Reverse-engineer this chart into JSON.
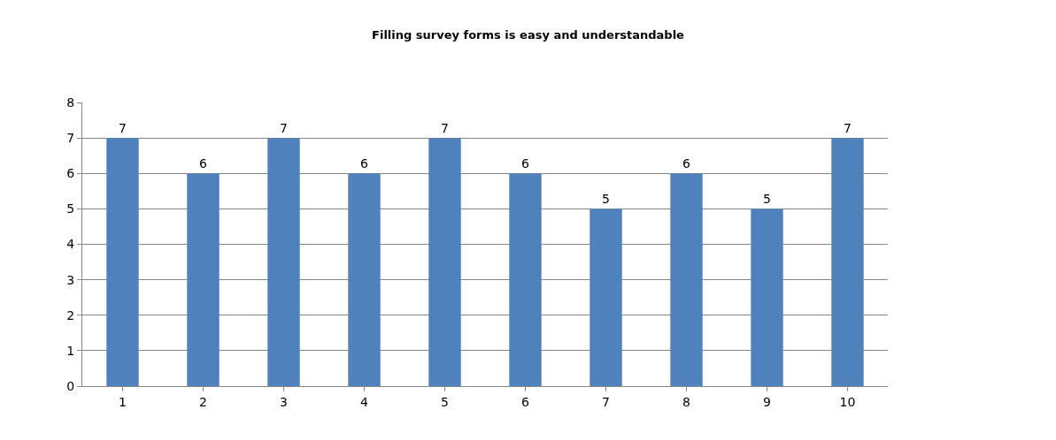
{
  "chart_data": {
    "type": "bar",
    "title": "Filling survey forms is easy and understandable",
    "categories": [
      "1",
      "2",
      "3",
      "4",
      "5",
      "6",
      "7",
      "8",
      "9",
      "10"
    ],
    "values": [
      7,
      6,
      7,
      6,
      7,
      6,
      5,
      6,
      5,
      7
    ],
    "color": "#4f81bd",
    "ylim": [
      0,
      8
    ],
    "yticks": [
      0,
      1,
      2,
      3,
      4,
      5,
      6,
      7,
      8
    ],
    "grid": "y",
    "data_labels": true,
    "legend": false
  }
}
